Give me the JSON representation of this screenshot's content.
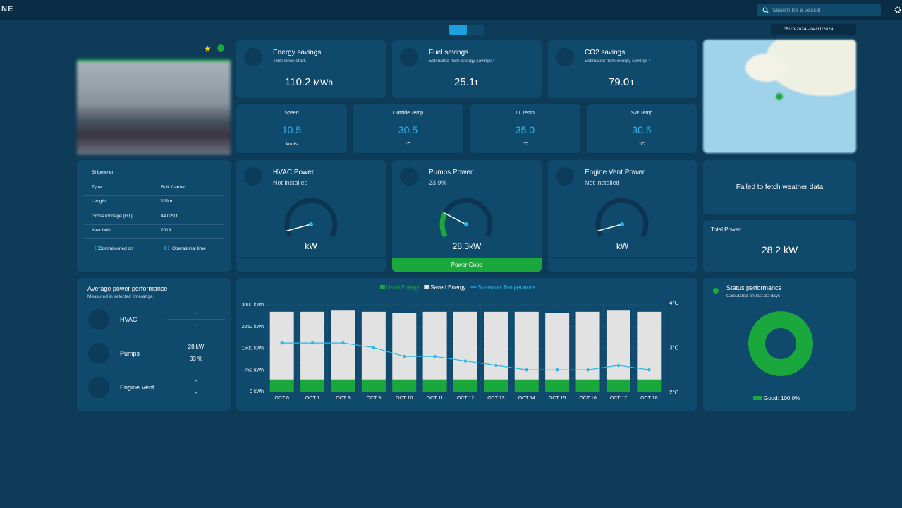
{
  "top_bar": {
    "logo": "NE",
    "search_placeholder": "Search for a vessel",
    "date_range": "05/10/2024 - 04/11/2024"
  },
  "savings": [
    {
      "title": "Energy savings",
      "subtitle": "Total since start:",
      "value": "110.2",
      "unit": "MWh"
    },
    {
      "title": "Fuel savings",
      "subtitle": "Estimated from energy savings *",
      "value": "25.1",
      "unit": "t"
    },
    {
      "title": "CO2 savings",
      "subtitle": "Estimated from energy savings *",
      "value": "79.0",
      "unit": "t"
    }
  ],
  "readings": [
    {
      "label": "Speed",
      "value": "10.5",
      "unit": "knots"
    },
    {
      "label": "Outside Temp",
      "value": "30.5",
      "unit": "°C"
    },
    {
      "label": "LT Temp",
      "value": "35.0",
      "unit": "°C"
    },
    {
      "label": "SW Temp",
      "value": "30.5",
      "unit": "°C"
    }
  ],
  "vessel_info": {
    "rows": [
      [
        "Shipowner:"
      ],
      [
        "Type:",
        "Bulk Carrier"
      ],
      [
        "Length:",
        "229 m"
      ],
      [
        "Gross tonnage (GT):",
        "44 029 t"
      ],
      [
        "Year built:",
        "2019"
      ]
    ],
    "links": [
      "Commisioned on",
      "Operational time"
    ]
  },
  "power_cards": [
    {
      "title": "HVAC Power",
      "status": "Not installed",
      "reading": "kW"
    },
    {
      "title": "Pumps Power",
      "percent": {
        "value": 23.9,
        "label": "23.9%"
      },
      "reading": "28.3kW",
      "badge": "Power Good"
    },
    {
      "title": "Engine Vent Power",
      "status": "Not installed",
      "reading": "kW"
    }
  ],
  "weather": {
    "message": "Failed to fetch weather data"
  },
  "total_power": {
    "title": "Total Power",
    "value": "28.2 kW"
  },
  "average_performance": {
    "title": "Average power performance",
    "subtitle": "Measured in selected timerange.",
    "rows": [
      {
        "name": "HVAC",
        "top": "-",
        "bottom": "-"
      },
      {
        "name": "Pumps",
        "top": "28 kW",
        "bottom": "33 %"
      },
      {
        "name": "Engine Vent.",
        "top": "-",
        "bottom": "-"
      }
    ]
  },
  "energy_chart": {
    "type": "bar",
    "categories": [
      "OCT 6",
      "OCT 7",
      "OCT 8",
      "OCT 9",
      "OCT 10",
      "OCT 11",
      "OCT 12",
      "OCT 13",
      "OCT 14",
      "OCT 15",
      "OCT 16",
      "OCT 17",
      "OCT 18"
    ],
    "series": [
      {
        "name": "Used Energy",
        "color": "#1aa83c",
        "values": [
          420,
          420,
          420,
          420,
          420,
          420,
          420,
          420,
          420,
          420,
          420,
          420,
          420
        ]
      },
      {
        "name": "Saved Energy",
        "color": "#e2e2e2",
        "values": [
          2340,
          2340,
          2380,
          2340,
          2290,
          2340,
          2340,
          2340,
          2340,
          2290,
          2340,
          2380,
          2340
        ]
      },
      {
        "name": "Seawater Temperature",
        "color": "#29b6e8",
        "axis": "y2",
        "values": [
          3.1,
          3.1,
          3.1,
          3.0,
          2.8,
          2.8,
          2.7,
          2.6,
          2.5,
          2.5,
          2.5,
          2.6,
          2.5
        ]
      }
    ],
    "ylim": [
      0,
      3000
    ],
    "yticks": [
      {
        "value": 0,
        "label": "0 kWh"
      },
      {
        "value": 750,
        "label": "750 kWh"
      },
      {
        "value": 1500,
        "label": "1500 kWh"
      },
      {
        "value": 2250,
        "label": "2250 kWh"
      },
      {
        "value": 3000,
        "label": "3000 kWh"
      }
    ],
    "y2lim": [
      2,
      4
    ],
    "y2ticks": [
      {
        "value": 2,
        "label": "2°C"
      },
      {
        "value": 3,
        "label": "3°C"
      },
      {
        "value": 4,
        "label": "4°C"
      }
    ],
    "grid": true
  },
  "status_performance": {
    "title": "Status performance",
    "subtitle": "Calculated on last 30 days",
    "segments": [
      {
        "value": 100,
        "label": "Good: 100.0%",
        "color": "#1aa83c"
      }
    ]
  }
}
